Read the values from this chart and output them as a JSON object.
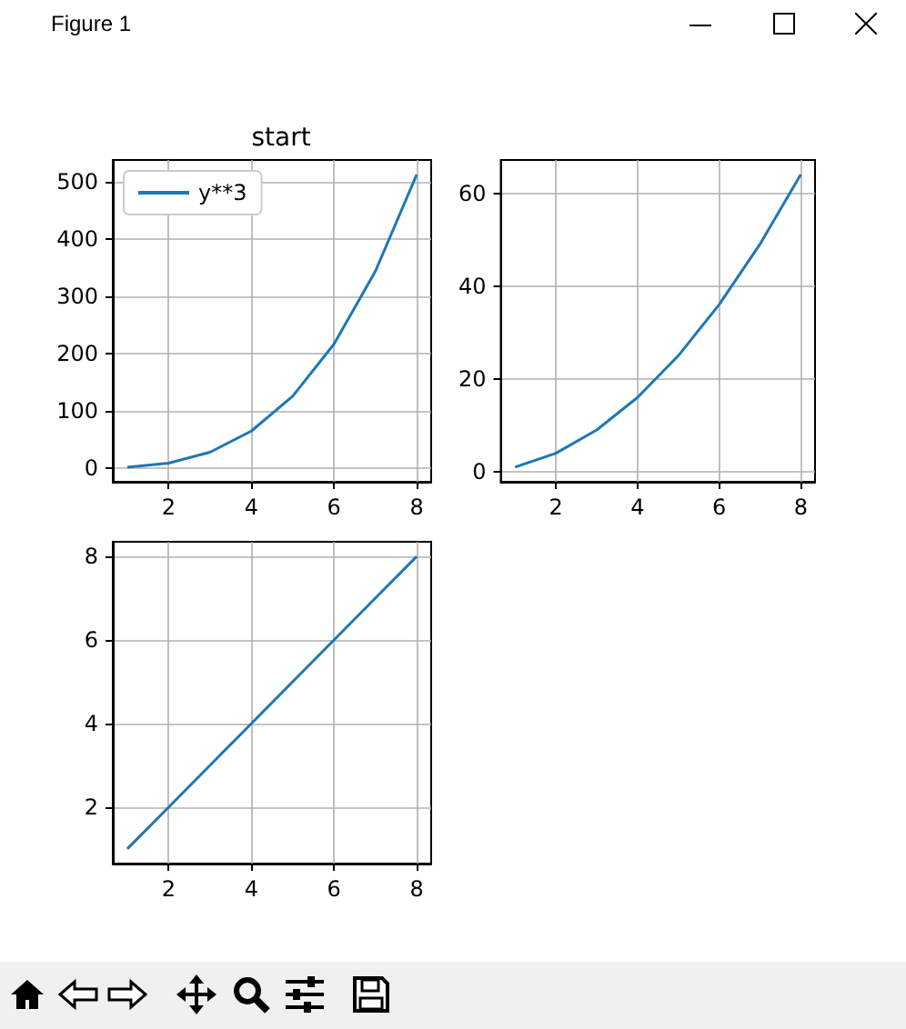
{
  "chart_data": [
    {
      "type": "line",
      "title": "start",
      "annotations": [
        "Figure 1"
      ],
      "x": [
        1,
        2,
        3,
        4,
        5,
        6,
        7,
        8
      ],
      "series": [
        {
          "name": "y**3",
          "color": "#1f77b4",
          "values": [
            1,
            8,
            27,
            64,
            125,
            216,
            343,
            512
          ]
        }
      ],
      "xlim": [
        0.65,
        8.35
      ],
      "xticks": [
        2,
        4,
        6,
        8
      ],
      "ylim": [
        -24.55,
        537.55
      ],
      "yticks": [
        0,
        100,
        200,
        300,
        400,
        500
      ],
      "grid": true,
      "legend": "top left"
    },
    {
      "type": "line",
      "x": [
        1,
        2,
        3,
        4,
        5,
        6,
        7,
        8
      ],
      "series": [
        {
          "color": "#1f77b4",
          "values": [
            1,
            4,
            9,
            16,
            25,
            36,
            49,
            64
          ]
        }
      ],
      "xlim": [
        0.65,
        8.35
      ],
      "xticks": [
        2,
        4,
        6,
        8
      ],
      "ylim": [
        -2.15,
        67.15
      ],
      "yticks": [
        0,
        20,
        40,
        60
      ],
      "grid": true
    },
    {
      "type": "line",
      "x": [
        1,
        2,
        3,
        4,
        5,
        6,
        7,
        8
      ],
      "series": [
        {
          "color": "#1f77b4",
          "values": [
            1,
            2,
            3,
            4,
            5,
            6,
            7,
            8
          ]
        }
      ],
      "xlim": [
        0.65,
        8.35
      ],
      "xticks": [
        2,
        4,
        6,
        8
      ],
      "ylim": [
        0.65,
        8.35
      ],
      "yticks": [
        2,
        4,
        6,
        8
      ],
      "grid": true
    }
  ]
}
